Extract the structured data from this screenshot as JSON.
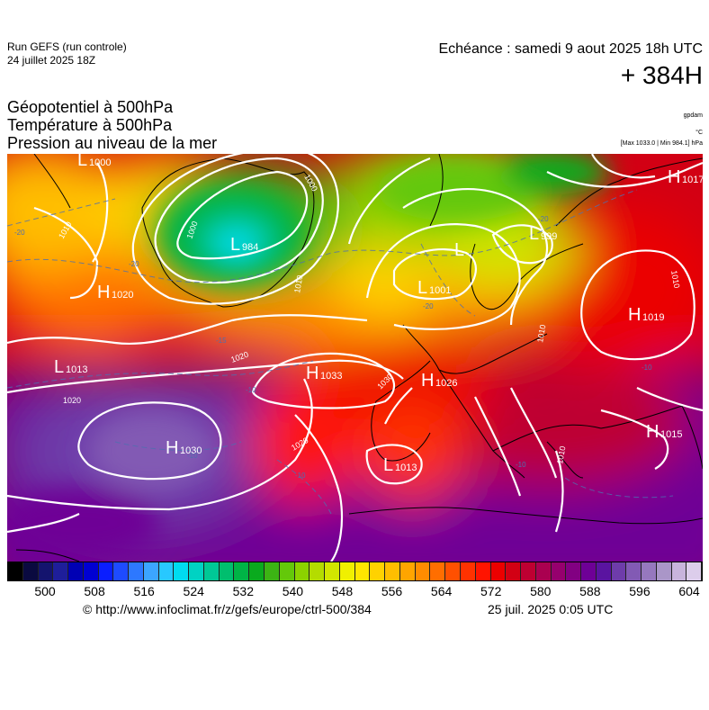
{
  "header": {
    "run_title": "Run GEFS (run controle)",
    "run_date": "24 juillet 2025 18Z",
    "echeance": "Echéance : samedi 9 aout 2025 18h UTC",
    "horizon": "+ 384H"
  },
  "parameters": [
    "Géopotentiel à 500hPa",
    "Température à 500hPa",
    "Pression au niveau de la mer"
  ],
  "units": {
    "geopotential": "gpdam",
    "temperature": "°C",
    "pressure_extremes": "[Max 1033.0 | Min 984.1] hPa"
  },
  "pressure_centers": [
    {
      "type": "L",
      "value": "1000"
    },
    {
      "type": "L",
      "value": "984"
    },
    {
      "type": "H",
      "value": "1020"
    },
    {
      "type": "L",
      "value": "1013"
    },
    {
      "type": "H",
      "value": "1033"
    },
    {
      "type": "H",
      "value": "1030"
    },
    {
      "type": "L",
      "value": "1001"
    },
    {
      "type": "L",
      "value": "999"
    },
    {
      "type": "L",
      "value": ""
    },
    {
      "type": "H",
      "value": "1026"
    },
    {
      "type": "H",
      "value": "1019"
    },
    {
      "type": "H",
      "value": "1017"
    },
    {
      "type": "H",
      "value": "1015"
    },
    {
      "type": "L",
      "value": "1013"
    }
  ],
  "isobar_labels": [
    "1000",
    "1000",
    "1010",
    "1010",
    "1010",
    "1020",
    "1020",
    "1020",
    "1030",
    "1010",
    "1010"
  ],
  "temperature_labels": [
    "-20",
    "-20",
    "-20",
    "-20",
    "-15",
    "-10",
    "-10",
    "-10",
    "-10",
    "-10"
  ],
  "colorbar": {
    "ticks": [
      "500",
      "508",
      "516",
      "524",
      "532",
      "540",
      "548",
      "556",
      "564",
      "572",
      "580",
      "588",
      "596",
      "604"
    ],
    "colors": [
      "#000000",
      "#0a0a40",
      "#14146e",
      "#1e1e9a",
      "#0000b4",
      "#0000d2",
      "#0a1eff",
      "#1e4bff",
      "#2d78ff",
      "#3ca5ff",
      "#28c8ff",
      "#00dcf0",
      "#00d2c3",
      "#00c896",
      "#00be6e",
      "#00b446",
      "#0aaa1e",
      "#3cb414",
      "#64c80a",
      "#8cd200",
      "#b4dc00",
      "#d2e600",
      "#f0f000",
      "#ffe600",
      "#ffd200",
      "#ffbe00",
      "#ffa500",
      "#ff8c00",
      "#ff6e00",
      "#ff5000",
      "#ff3200",
      "#ff1400",
      "#eb0000",
      "#d20014",
      "#be0032",
      "#aa0050",
      "#96006e",
      "#820082",
      "#6e0096",
      "#5a14a0",
      "#6e3caa",
      "#825ab4",
      "#9678be",
      "#aa96c8",
      "#c8b4dc",
      "#dccdeb"
    ]
  },
  "footer": {
    "credit": "© http://www.infoclimat.fr/z/gefs/europe/ctrl-500/384",
    "generated": "25 juil. 2025  0:05 UTC"
  }
}
